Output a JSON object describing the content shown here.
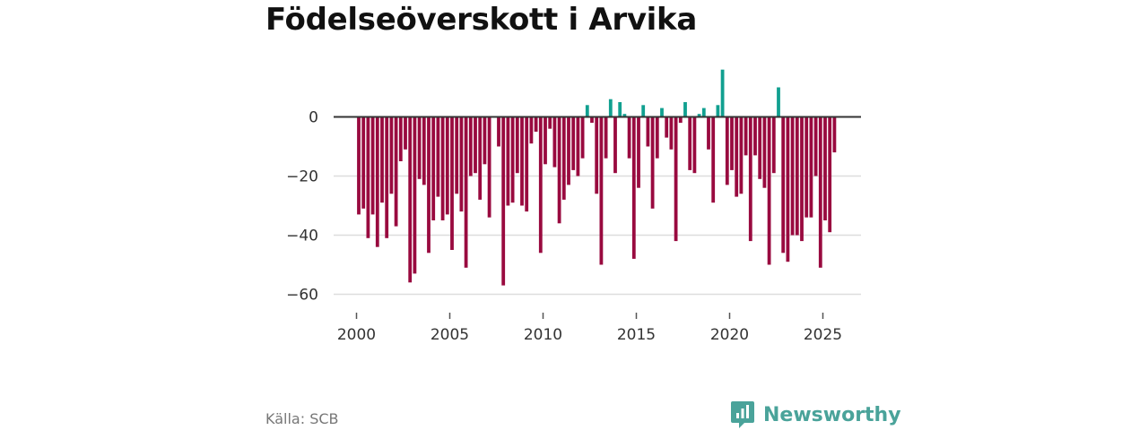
{
  "colors": {
    "positive": "#11a090",
    "negative": "#990a3f",
    "brand": "#4aa39a",
    "grid": "#dddddd",
    "zero": "#333333"
  },
  "footer": {
    "source": "Källa: SCB",
    "brand": "Newsworthy",
    "brand_icon": "newsworthy-logo-icon"
  },
  "chart_data": {
    "type": "bar",
    "title": "Födelseöverskott i Arvika",
    "xlabel": "",
    "ylabel": "",
    "x_ticks": [
      "2000",
      "2005",
      "2010",
      "2015",
      "2020",
      "2025"
    ],
    "y_ticks": [
      0,
      -20,
      -40,
      -60
    ],
    "y_tick_labels": [
      "0",
      "−20",
      "−40",
      "−60"
    ],
    "ylim": [
      -63,
      17
    ],
    "xlim": [
      2000,
      2026.5
    ],
    "start": 2000.0,
    "period": "quarterly",
    "values": [
      -33,
      -31,
      -41,
      -33,
      -44,
      -29,
      -41,
      -26,
      -37,
      -15,
      -11,
      -56,
      -53,
      -21,
      -23,
      -46,
      -35,
      -27,
      -35,
      -33,
      -45,
      -26,
      -32,
      -51,
      -20,
      -19,
      -28,
      -16,
      -34,
      0,
      -10,
      -57,
      -30,
      -29,
      -19,
      -30,
      -32,
      -9,
      -5,
      -46,
      -16,
      -4,
      -17,
      -36,
      -28,
      -23,
      -18,
      -20,
      -14,
      4,
      -2,
      -26,
      -50,
      -14,
      6,
      -19,
      5,
      1,
      -14,
      -48,
      -24,
      4,
      -10,
      -31,
      -14,
      3,
      -7,
      -11,
      -42,
      -2,
      5,
      -18,
      -19,
      1,
      3,
      -11,
      -29,
      4,
      16,
      -23,
      -18,
      -27,
      -26,
      -13,
      -42,
      -13,
      -21,
      -24,
      -50,
      -19,
      10,
      -46,
      -49,
      -40,
      -40,
      -42,
      -34,
      -34,
      -20,
      -51,
      -35,
      -39,
      -12
    ]
  }
}
